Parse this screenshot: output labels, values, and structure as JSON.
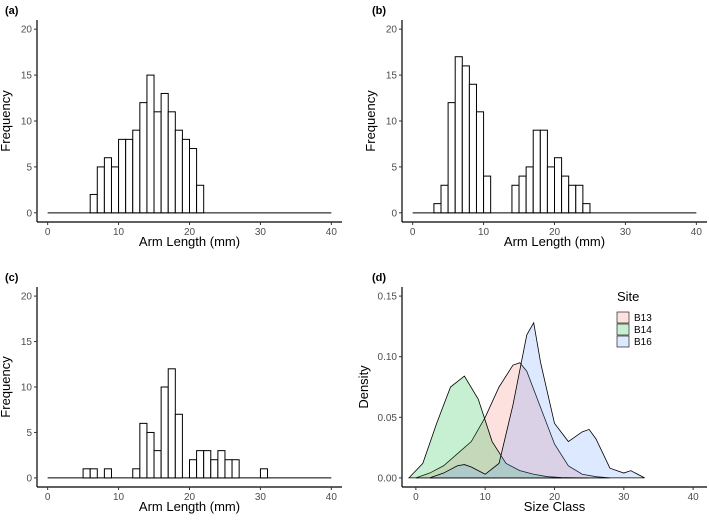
{
  "chart_data": [
    {
      "panel": "(a)",
      "type": "bar",
      "xlabel": "Arm Length (mm)",
      "ylabel": "Frequency",
      "xlim": [
        0,
        40
      ],
      "ylim": [
        0,
        20
      ],
      "xticks": [
        0,
        10,
        20,
        30,
        40
      ],
      "yticks": [
        0,
        5,
        10,
        15,
        20
      ],
      "binwidth": 1,
      "bin_starts": [
        6,
        7,
        8,
        9,
        10,
        11,
        12,
        13,
        14,
        15,
        16,
        17,
        18,
        19,
        20,
        21
      ],
      "values": [
        2,
        5,
        6,
        5,
        8,
        8,
        9,
        12,
        15,
        11,
        13,
        11,
        9,
        8,
        7,
        3
      ]
    },
    {
      "panel": "(b)",
      "type": "bar",
      "xlabel": "Arm Length (mm)",
      "ylabel": "",
      "xlim": [
        0,
        40
      ],
      "ylim": [
        0,
        20
      ],
      "xticks": [
        0,
        10,
        20,
        30,
        40
      ],
      "yticks": [
        0,
        5,
        10,
        15,
        20
      ],
      "binwidth": 1,
      "bin_starts": [
        3,
        4,
        5,
        6,
        7,
        8,
        9,
        10,
        14,
        15,
        16,
        17,
        18,
        19,
        20,
        21,
        22,
        23,
        24
      ],
      "values": [
        1,
        3,
        12,
        17,
        16,
        14,
        11,
        4,
        3,
        4,
        5,
        9,
        9,
        5,
        6,
        4,
        3,
        3,
        1
      ]
    },
    {
      "panel": "(c)",
      "type": "bar",
      "xlabel": "Arm Length (mm)",
      "ylabel": "",
      "xlim": [
        0,
        40
      ],
      "ylim": [
        0,
        20
      ],
      "xticks": [
        0,
        10,
        20,
        30,
        40
      ],
      "yticks": [
        0,
        5,
        10,
        15,
        20
      ],
      "binwidth": 1,
      "bin_starts": [
        5,
        6,
        8,
        12,
        13,
        14,
        15,
        16,
        17,
        18,
        20,
        21,
        22,
        23,
        24,
        25,
        26,
        30
      ],
      "values": [
        1,
        1,
        1,
        1,
        6,
        5,
        3,
        10,
        12,
        7,
        2,
        3,
        3,
        2,
        3,
        2,
        2,
        1
      ]
    },
    {
      "panel": "(d)",
      "type": "area",
      "xlabel": "Size Class",
      "ylabel": "Density",
      "xlim": [
        0,
        40
      ],
      "ylim": [
        0,
        0.15
      ],
      "xticks": [
        0,
        10,
        20,
        30,
        40
      ],
      "yticks": [
        0.0,
        0.05,
        0.1,
        0.15
      ],
      "ytick_labels": [
        "0.00",
        "0.05",
        "0.10",
        "0.15"
      ],
      "legend": {
        "title": "Site",
        "position": "top-right"
      },
      "series": [
        {
          "name": "B13",
          "color": "#F8766D",
          "x": [
            0,
            2,
            4,
            6,
            8,
            10,
            12,
            14,
            15,
            16,
            18,
            20,
            22,
            24,
            26,
            28
          ],
          "y": [
            0.0,
            0.004,
            0.01,
            0.02,
            0.03,
            0.05,
            0.075,
            0.093,
            0.095,
            0.088,
            0.058,
            0.028,
            0.01,
            0.003,
            0.001,
            0.0
          ]
        },
        {
          "name": "B14",
          "color": "#00BA38",
          "x": [
            -1,
            1,
            3,
            5,
            7,
            9,
            11,
            13,
            15,
            17,
            19,
            21,
            23,
            25
          ],
          "y": [
            0.0,
            0.012,
            0.045,
            0.075,
            0.084,
            0.065,
            0.03,
            0.012,
            0.006,
            0.003,
            0.001,
            0.0003,
            0.0001,
            0.0
          ]
        },
        {
          "name": "B16",
          "color": "#619CFF",
          "x": [
            2,
            4,
            6,
            7,
            8,
            10,
            12,
            14,
            16,
            17,
            18,
            20,
            22,
            24,
            25,
            26,
            28,
            30,
            31,
            33
          ],
          "y": [
            0.0,
            0.004,
            0.01,
            0.011,
            0.009,
            0.003,
            0.012,
            0.06,
            0.118,
            0.128,
            0.095,
            0.045,
            0.03,
            0.038,
            0.04,
            0.032,
            0.008,
            0.004,
            0.006,
            0.0
          ]
        }
      ]
    }
  ]
}
